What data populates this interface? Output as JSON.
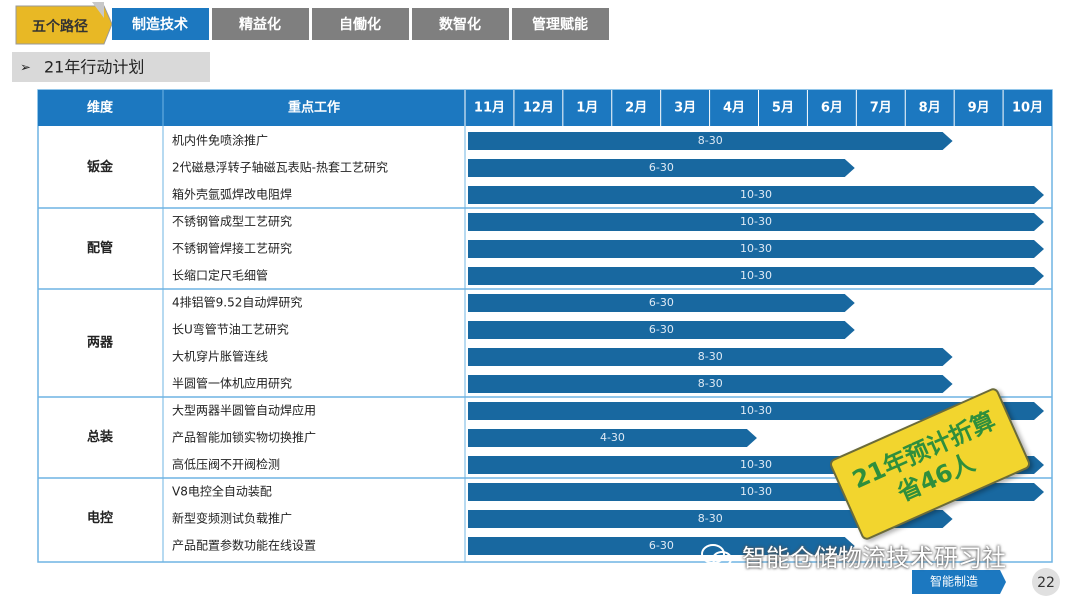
{
  "tabs": {
    "label": "五个路径",
    "items": [
      "制造技术",
      "精益化",
      "自働化",
      "数智化",
      "管理赋能"
    ]
  },
  "section": "21年行动计划",
  "table": {
    "headers": [
      "维度",
      "重点工作"
    ],
    "months": [
      "11月",
      "12月",
      "1月",
      "2月",
      "3月",
      "4月",
      "5月",
      "6月",
      "7月",
      "8月",
      "9月",
      "10月"
    ],
    "groups": [
      {
        "name": "钣金",
        "rows": [
          {
            "task": "机内件免喷涂推广",
            "end": "8-30"
          },
          {
            "task": "2代磁悬浮转子轴磁瓦表贴-热套工艺研究",
            "end": "6-30"
          },
          {
            "task": "箱外壳氩弧焊改电阻焊",
            "end": "10-30"
          }
        ]
      },
      {
        "name": "配管",
        "rows": [
          {
            "task": "不锈钢管成型工艺研究",
            "end": "10-30"
          },
          {
            "task": "不锈钢管焊接工艺研究",
            "end": "10-30"
          },
          {
            "task": "长缩口定尺毛细管",
            "end": "10-30"
          }
        ]
      },
      {
        "name": "两器",
        "rows": [
          {
            "task": "4排铝管9.52自动焊研究",
            "end": "6-30"
          },
          {
            "task": "长U弯管节油工艺研究",
            "end": "6-30"
          },
          {
            "task": "大机穿片胀管连线",
            "end": "8-30"
          },
          {
            "task": "半圆管一体机应用研究",
            "end": "8-30"
          }
        ]
      },
      {
        "name": "总装",
        "rows": [
          {
            "task": "大型两器半圆管自动焊应用",
            "end": "10-30"
          },
          {
            "task": "产品智能加锁实物切换推广",
            "end": "4-30"
          },
          {
            "task": "高低压阀不开阀检测",
            "end": "10-30"
          }
        ]
      },
      {
        "name": "电控",
        "rows": [
          {
            "task": "V8电控全自动装配",
            "end": "10-30"
          },
          {
            "task": "新型变频测试负载推广",
            "end": "8-30"
          },
          {
            "task": "产品配置参数功能在线设置",
            "end": "6-30"
          }
        ]
      }
    ]
  },
  "stamp": [
    "21年预计折算",
    "省46人"
  ],
  "watermark": "智能仓储物流技术研习社",
  "footer": {
    "tag": "智能制造",
    "page": "22"
  }
}
